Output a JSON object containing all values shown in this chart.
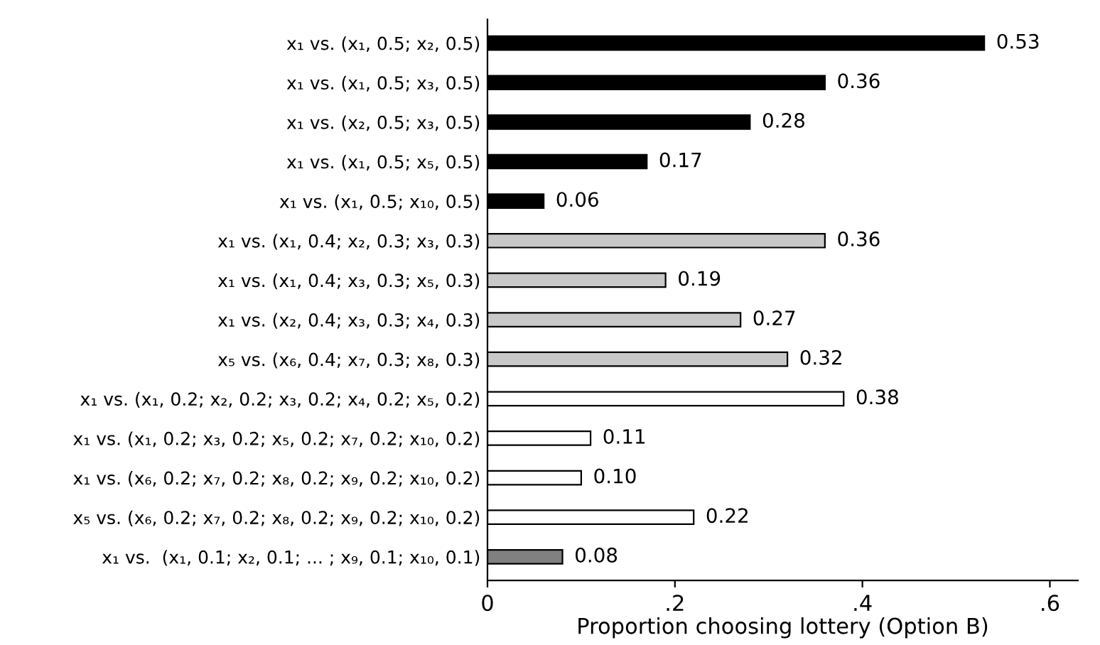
{
  "chart_data": {
    "type": "bar",
    "orientation": "horizontal",
    "xlabel": "Proportion choosing lottery (Option B)",
    "categories": [
      "x₁ vs. (x₁, 0.5; x₂, 0.5)",
      "x₁ vs. (x₁, 0.5; x₃, 0.5)",
      "x₁ vs. (x₂, 0.5; x₃, 0.5)",
      "x₁ vs. (x₁, 0.5; x₅, 0.5)",
      "x₁ vs. (x₁, 0.5; x₁₀, 0.5)",
      "x₁ vs. (x₁, 0.4; x₂, 0.3; x₃, 0.3)",
      "x₁ vs. (x₁, 0.4; x₃, 0.3; x₅, 0.3)",
      "x₁ vs. (x₂, 0.4; x₃, 0.3; x₄, 0.3)",
      "x₅ vs. (x₆, 0.4; x₇, 0.3; x₈, 0.3)",
      "x₁ vs. (x₁, 0.2; x₂, 0.2; x₃, 0.2; x₄, 0.2; x₅, 0.2)",
      "x₁ vs. (x₁, 0.2; x₃, 0.2; x₅, 0.2; x₇, 0.2; x₁₀, 0.2)",
      "x₁ vs. (x₆, 0.2; x₇, 0.2; x₈, 0.2; x₉, 0.2; x₁₀, 0.2)",
      "x₅ vs. (x₆, 0.2; x₇, 0.2; x₈, 0.2; x₉, 0.2; x₁₀, 0.2)",
      "x₁ vs.  (x₁, 0.1; x₂, 0.1; ... ; x₉, 0.1; x₁₀, 0.1)"
    ],
    "values": [
      0.53,
      0.36,
      0.28,
      0.17,
      0.06,
      0.36,
      0.19,
      0.27,
      0.32,
      0.38,
      0.11,
      0.1,
      0.22,
      0.08
    ],
    "value_labels": [
      "0.53",
      "0.36",
      "0.28",
      "0.17",
      "0.06",
      "0.36",
      "0.19",
      "0.27",
      "0.32",
      "0.38",
      "0.11",
      "0.10",
      "0.22",
      "0.08"
    ],
    "colors": [
      "#000000",
      "#000000",
      "#000000",
      "#000000",
      "#000000",
      "#c8c8c8",
      "#c8c8c8",
      "#c8c8c8",
      "#c8c8c8",
      "#ffffff",
      "#ffffff",
      "#ffffff",
      "#ffffff",
      "#808080"
    ],
    "xlim": [
      0,
      0.63
    ],
    "xticks": [
      {
        "value": 0,
        "label": "0"
      },
      {
        "value": 0.2,
        "label": ".2"
      },
      {
        "value": 0.4,
        "label": ".4"
      },
      {
        "value": 0.6,
        "label": ".6"
      }
    ],
    "grid": false,
    "legend": false
  }
}
